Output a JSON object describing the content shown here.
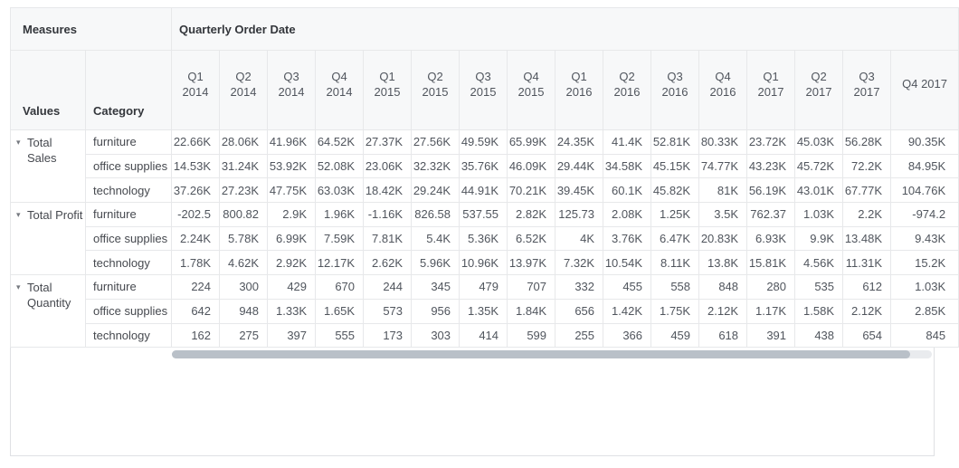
{
  "pivot": {
    "measures_header": "Measures",
    "columns_header": "Quarterly Order Date",
    "values_label": "Values",
    "category_label": "Category",
    "caret_icon": "▾",
    "columns": [
      "Q1 2014",
      "Q2 2014",
      "Q3 2014",
      "Q4 2014",
      "Q1 2015",
      "Q2 2015",
      "Q3 2015",
      "Q4 2015",
      "Q1 2016",
      "Q2 2016",
      "Q3 2016",
      "Q4 2016",
      "Q1 2017",
      "Q2 2017",
      "Q3 2017",
      "Q4 2017"
    ],
    "row_groups": [
      {
        "measure": "Total Sales",
        "rows": [
          {
            "category": "furniture",
            "values": [
              "22.66K",
              "28.06K",
              "41.96K",
              "64.52K",
              "27.37K",
              "27.56K",
              "49.59K",
              "65.99K",
              "24.35K",
              "41.4K",
              "52.81K",
              "80.33K",
              "23.72K",
              "45.03K",
              "56.28K",
              "90.35K"
            ]
          },
          {
            "category": "office supplies",
            "values": [
              "14.53K",
              "31.24K",
              "53.92K",
              "52.08K",
              "23.06K",
              "32.32K",
              "35.76K",
              "46.09K",
              "29.44K",
              "34.58K",
              "45.15K",
              "74.77K",
              "43.23K",
              "45.72K",
              "72.2K",
              "84.95K"
            ]
          },
          {
            "category": "technology",
            "values": [
              "37.26K",
              "27.23K",
              "47.75K",
              "63.03K",
              "18.42K",
              "29.24K",
              "44.91K",
              "70.21K",
              "39.45K",
              "60.1K",
              "45.82K",
              "81K",
              "56.19K",
              "43.01K",
              "67.77K",
              "104.76K"
            ]
          }
        ]
      },
      {
        "measure": "Total Profit",
        "rows": [
          {
            "category": "furniture",
            "values": [
              "-202.5",
              "800.82",
              "2.9K",
              "1.96K",
              "-1.16K",
              "826.58",
              "537.55",
              "2.82K",
              "125.73",
              "2.08K",
              "1.25K",
              "3.5K",
              "762.37",
              "1.03K",
              "2.2K",
              "-974.2"
            ]
          },
          {
            "category": "office supplies",
            "values": [
              "2.24K",
              "5.78K",
              "6.99K",
              "7.59K",
              "7.81K",
              "5.4K",
              "5.36K",
              "6.52K",
              "4K",
              "3.76K",
              "6.47K",
              "20.83K",
              "6.93K",
              "9.9K",
              "13.48K",
              "9.43K"
            ]
          },
          {
            "category": "technology",
            "values": [
              "1.78K",
              "4.62K",
              "2.92K",
              "12.17K",
              "2.62K",
              "5.96K",
              "10.96K",
              "13.97K",
              "7.32K",
              "10.54K",
              "8.11K",
              "13.8K",
              "15.81K",
              "4.56K",
              "11.31K",
              "15.2K"
            ]
          }
        ]
      },
      {
        "measure": "Total Quantity",
        "rows": [
          {
            "category": "furniture",
            "values": [
              "224",
              "300",
              "429",
              "670",
              "244",
              "345",
              "479",
              "707",
              "332",
              "455",
              "558",
              "848",
              "280",
              "535",
              "612",
              "1.03K"
            ]
          },
          {
            "category": "office supplies",
            "values": [
              "642",
              "948",
              "1.33K",
              "1.65K",
              "573",
              "956",
              "1.35K",
              "1.84K",
              "656",
              "1.42K",
              "1.75K",
              "2.12K",
              "1.17K",
              "1.58K",
              "2.12K",
              "2.85K"
            ]
          },
          {
            "category": "technology",
            "values": [
              "162",
              "275",
              "397",
              "555",
              "173",
              "303",
              "414",
              "599",
              "255",
              "366",
              "459",
              "618",
              "391",
              "438",
              "654",
              "845"
            ]
          }
        ]
      }
    ]
  },
  "colors": {
    "header_bg": "#f7f8f9",
    "grid_border": "#e7e8ea",
    "panel_border": "#dfe1e4",
    "header_text": "#33363b",
    "data_text": "#50555d",
    "scrollbar_thumb": "#b9c0c8",
    "scrollbar_track": "#e9ebee"
  }
}
